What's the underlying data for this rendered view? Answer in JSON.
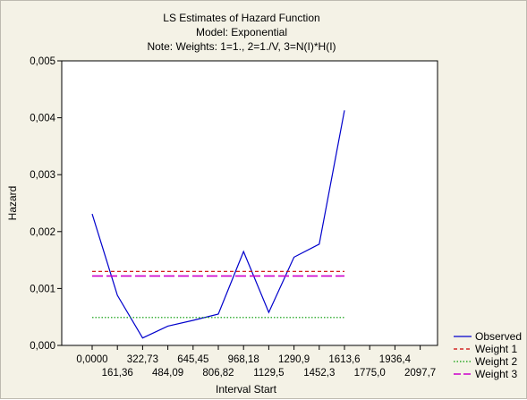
{
  "chart_data": {
    "type": "line",
    "title_lines": [
      "LS Estimates of Hazard Function",
      "Model: Exponential",
      "Note: Weights: 1=1., 2=1./V, 3=N(I)*H(I)"
    ],
    "xlabel": "Interval Start",
    "ylabel": "Hazard",
    "x_ticks": [
      "0,0000",
      "161,36",
      "322,73",
      "484,09",
      "645,45",
      "806,82",
      "968,18",
      "1129,5",
      "1290,9",
      "1452,3",
      "1613,6",
      "1775,0",
      "1936,4",
      "2097,7"
    ],
    "y_ticks": [
      "0,000",
      "0,001",
      "0,002",
      "0,003",
      "0,004",
      "0,005"
    ],
    "ylim": [
      0,
      0.005
    ],
    "grid": false,
    "legend_position": "bottom-right",
    "series": [
      {
        "name": "Observed",
        "style": "solid",
        "color": "#0000cc",
        "x": [
          0,
          161.36,
          322.73,
          484.09,
          645.45,
          806.82,
          968.18,
          1129.5,
          1290.9,
          1452.3,
          1613.6
        ],
        "values": [
          0.00231,
          0.00088,
          0.00013,
          0.00034,
          0.00044,
          0.00055,
          0.00165,
          0.00058,
          0.00155,
          0.00178,
          0.00413
        ]
      },
      {
        "name": "Weight 1",
        "style": "dashed",
        "color": "#cc0000",
        "x": [
          0,
          1613.6
        ],
        "values": [
          0.0013,
          0.0013
        ]
      },
      {
        "name": "Weight 2",
        "style": "dotted",
        "color": "#009900",
        "x": [
          0,
          1613.6
        ],
        "values": [
          0.00049,
          0.00049
        ]
      },
      {
        "name": "Weight 3",
        "style": "longdash",
        "color": "#cc00cc",
        "x": [
          0,
          1613.6
        ],
        "values": [
          0.00122,
          0.00122
        ]
      }
    ]
  }
}
